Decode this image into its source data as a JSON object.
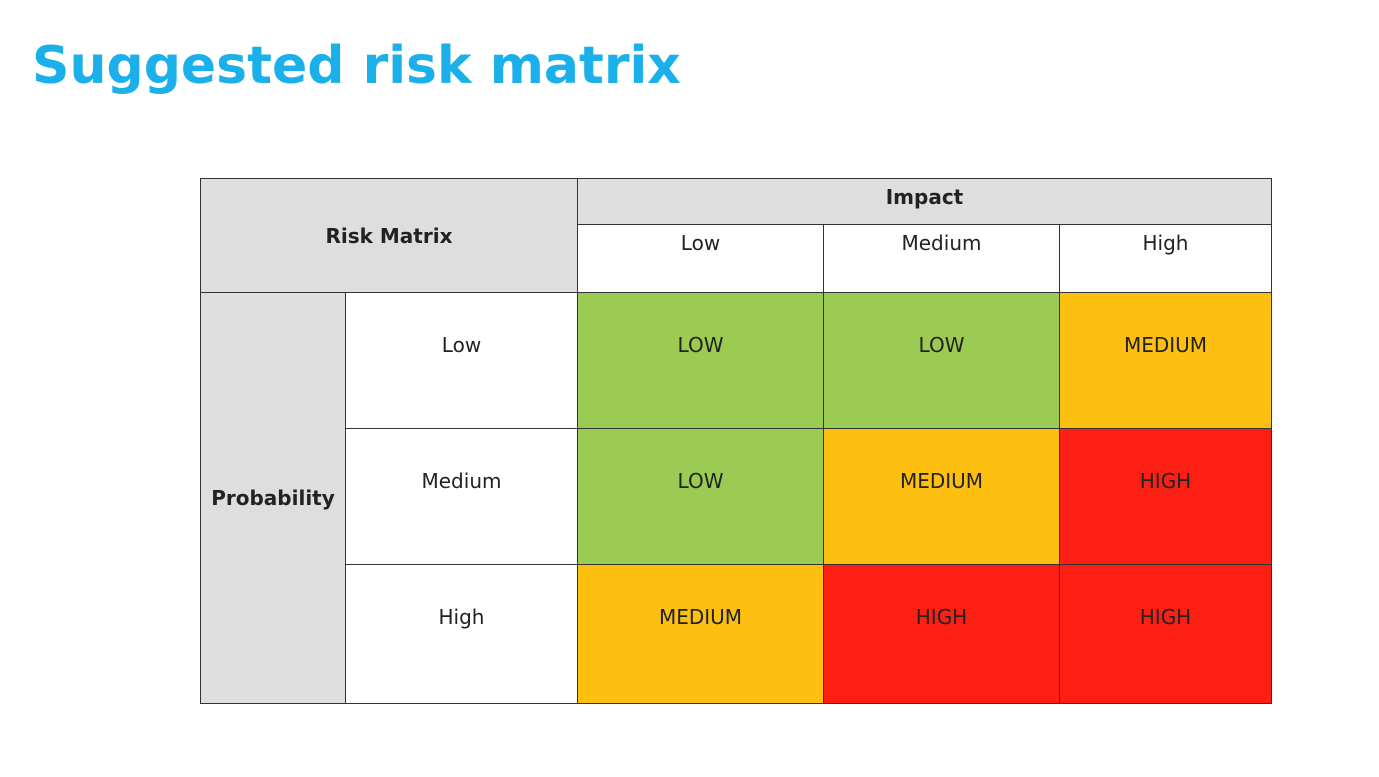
{
  "title": "Suggested risk matrix",
  "table": {
    "corner_label": "Risk Matrix",
    "impact_label": "Impact",
    "probability_label": "Probability",
    "impact_levels": [
      "Low",
      "Medium",
      "High"
    ],
    "probability_levels": [
      "Low",
      "Medium",
      "High"
    ],
    "cells": [
      [
        "LOW",
        "LOW",
        "MEDIUM"
      ],
      [
        "LOW",
        "MEDIUM",
        "HIGH"
      ],
      [
        "MEDIUM",
        "HIGH",
        "HIGH"
      ]
    ]
  },
  "colors": {
    "title": "#1cb0ea",
    "LOW": "#9bcb52",
    "MEDIUM": "#fdc010",
    "HIGH": "#fe1f14",
    "header": "#dedede"
  }
}
